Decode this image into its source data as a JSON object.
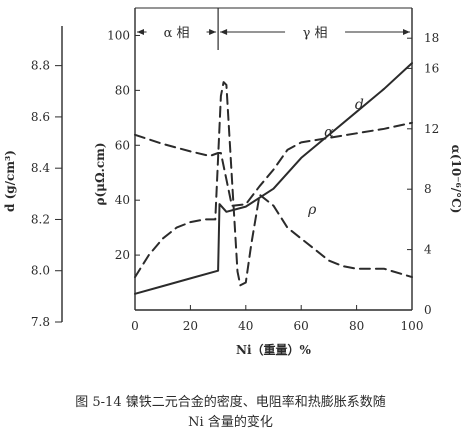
{
  "chart_data": {
    "type": "line",
    "x_axis": {
      "label": "Ni（重量）%",
      "range": [
        0,
        100
      ],
      "ticks": [
        "0",
        "20",
        "40",
        "60",
        "80",
        "100"
      ]
    },
    "y_axes": {
      "density": {
        "label": "d (g/cm³)",
        "range": [
          7.8,
          8.9
        ],
        "ticks": [
          "7.8",
          "8.0",
          "8.2",
          "8.4",
          "8.6",
          "8.8"
        ]
      },
      "resistivity": {
        "label": "ρ(μΩ.cm)",
        "range": [
          0,
          110
        ],
        "ticks": [
          "20",
          "40",
          "60",
          "80",
          "100"
        ]
      },
      "expansion": {
        "label": "α(10⁻⁶/°C)",
        "range": [
          0,
          20
        ],
        "ticks": [
          "0",
          "4",
          "8",
          "12",
          "16",
          "18"
        ]
      }
    },
    "phase_regions": [
      {
        "label": "α 相",
        "from": 0,
        "to": 30
      },
      {
        "label": "γ 相",
        "from": 30,
        "to": 100
      }
    ],
    "series": [
      {
        "name": "d",
        "axis": "density",
        "style": "solid",
        "points": [
          [
            0,
            7.91
          ],
          [
            10,
            7.94
          ],
          [
            20,
            7.97
          ],
          [
            30,
            8.0
          ],
          [
            30.5,
            8.26
          ],
          [
            33,
            8.23
          ],
          [
            40,
            8.25
          ],
          [
            50,
            8.32
          ],
          [
            60,
            8.44
          ],
          [
            70,
            8.53
          ],
          [
            80,
            8.62
          ],
          [
            90,
            8.71
          ],
          [
            100,
            8.81
          ]
        ]
      },
      {
        "name": "ρ",
        "axis": "resistivity",
        "style": "dashed",
        "points": [
          [
            0,
            12
          ],
          [
            5,
            20
          ],
          [
            10,
            26
          ],
          [
            15,
            30
          ],
          [
            20,
            32
          ],
          [
            25,
            33
          ],
          [
            29,
            33
          ],
          [
            31,
            78
          ],
          [
            32,
            83
          ],
          [
            33,
            82
          ],
          [
            35,
            48
          ],
          [
            37,
            14
          ],
          [
            38,
            9
          ],
          [
            40,
            10
          ],
          [
            42,
            24
          ],
          [
            45,
            42
          ],
          [
            50,
            38
          ],
          [
            55,
            30
          ],
          [
            60,
            26
          ],
          [
            65,
            22
          ],
          [
            70,
            18
          ],
          [
            75,
            16
          ],
          [
            80,
            15
          ],
          [
            90,
            15
          ],
          [
            100,
            12
          ]
        ]
      },
      {
        "name": "α",
        "axis": "expansion",
        "style": "dashed",
        "points": [
          [
            0,
            11.6
          ],
          [
            10,
            11.0
          ],
          [
            20,
            10.5
          ],
          [
            27,
            10.2
          ],
          [
            30,
            10.4
          ],
          [
            31,
            10.4
          ],
          [
            35,
            6.9
          ],
          [
            40,
            7.0
          ],
          [
            45,
            8.2
          ],
          [
            50,
            9.3
          ],
          [
            55,
            10.6
          ],
          [
            60,
            11.1
          ],
          [
            70,
            11.4
          ],
          [
            80,
            11.7
          ],
          [
            90,
            12.0
          ],
          [
            100,
            12.4
          ]
        ]
      }
    ]
  },
  "caption": {
    "line1": "图 5-14   镍铁二元合金的密度、电阻率和热膨胀系数随",
    "line2": "Ni 含量的变化"
  },
  "colors": {
    "ink": "#2b2b2b",
    "background": "#ffffff"
  }
}
